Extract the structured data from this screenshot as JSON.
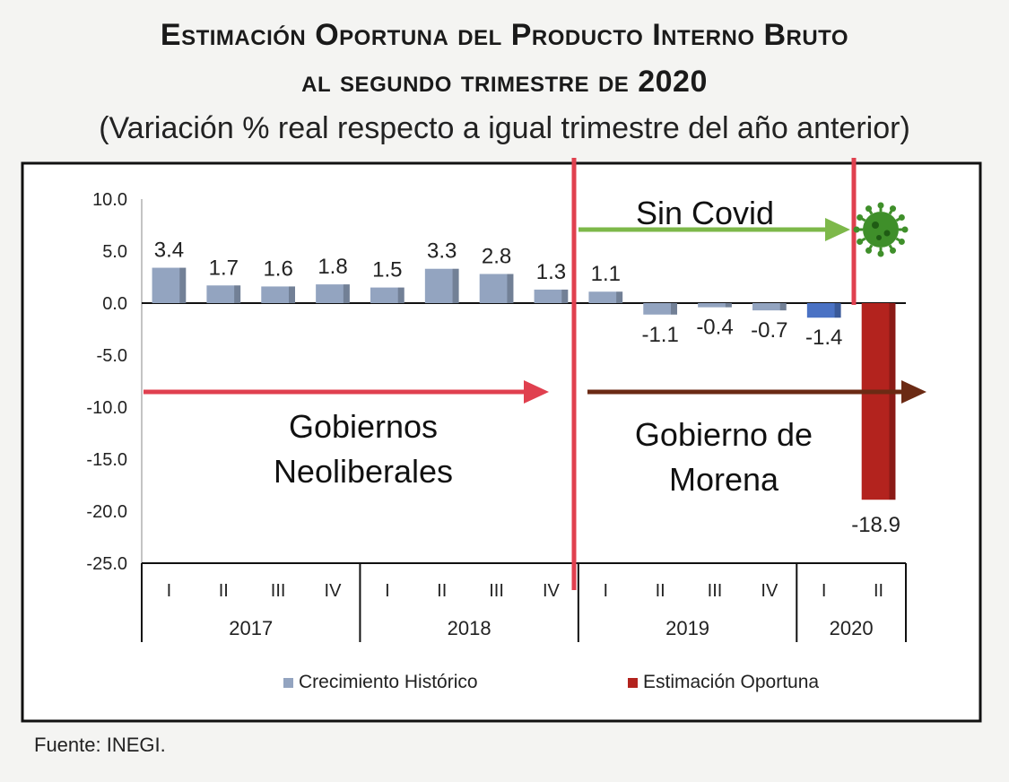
{
  "title_line1": "Estimación Oportuna del Producto Interno Bruto",
  "title_line2": "al segundo trimestre de 2020",
  "subtitle": "(Variación % real respecto a igual trimestre del año anterior)",
  "source": "Fuente: INEGI.",
  "annotations": {
    "sin_covid": "Sin Covid",
    "neoliberal": [
      "Gobiernos",
      "Neoliberales"
    ],
    "morena": [
      "Gobierno de",
      "Morena"
    ]
  },
  "colors": {
    "historic": "#93a4c0",
    "historic_highlight": "#4a72c4",
    "estimate": "#b3231e",
    "divider": "#e0404f",
    "arrow_neoliberal": "#e0404f",
    "arrow_morena": "#6b2a14",
    "arrow_covid": "#7db84a",
    "virus": "#3f8f2a"
  },
  "chart_data": {
    "type": "bar",
    "title": "Estimación Oportuna del Producto Interno Bruto al segundo trimestre de 2020",
    "subtitle": "(Variación % real respecto a igual trimestre del año anterior)",
    "categories": [
      "I",
      "II",
      "III",
      "IV",
      "I",
      "II",
      "III",
      "IV",
      "I",
      "II",
      "III",
      "IV",
      "I",
      "II"
    ],
    "years": [
      {
        "label": "2017",
        "quarters": 4
      },
      {
        "label": "2018",
        "quarters": 4
      },
      {
        "label": "2019",
        "quarters": 4
      },
      {
        "label": "2020",
        "quarters": 2
      }
    ],
    "values": [
      3.4,
      1.7,
      1.6,
      1.8,
      1.5,
      3.3,
      2.8,
      1.3,
      1.1,
      -1.1,
      -0.4,
      -0.7,
      -1.4,
      -18.9
    ],
    "value_labels": [
      "3.4",
      "1.7",
      "1.6",
      "1.8",
      "1.5",
      "3.3",
      "2.8",
      "1.3",
      "1.1",
      "-1.1",
      "-0.4",
      "-0.7",
      "-1.4",
      "-18.9"
    ],
    "series": [
      {
        "name": "Crecimiento  Histórico",
        "color": "#93a4c0"
      },
      {
        "name": "Estimación Oportuna",
        "color": "#b3231e"
      }
    ],
    "series_index": [
      0,
      0,
      0,
      0,
      0,
      0,
      0,
      0,
      0,
      0,
      0,
      0,
      0,
      1
    ],
    "highlight_index": 12,
    "ylim": [
      -25,
      10
    ],
    "yticks": [
      "10.0",
      "5.0",
      "0.0",
      "-5.0",
      "-10.0",
      "-15.0",
      "-20.0",
      "-25.0"
    ],
    "legend_position": "bottom",
    "grid": false
  }
}
